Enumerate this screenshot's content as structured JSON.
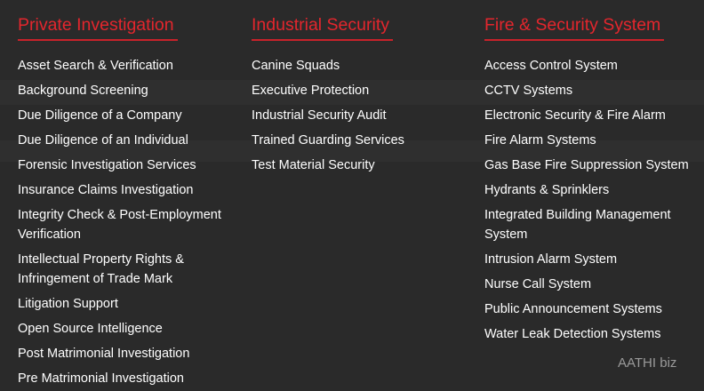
{
  "menu": {
    "columns": [
      {
        "heading": "Private Investigation",
        "items": [
          "Asset Search & Verification",
          "Background Screening",
          "Due Diligence of a Company",
          "Due Diligence of an Individual",
          "Forensic Investigation Services",
          "Insurance Claims Investigation",
          "Integrity Check & Post-Employment Verification",
          "Intellectual Property Rights & Infringement of Trade Mark",
          "Litigation Support",
          "Open Source Intelligence",
          "Post Matrimonial Investigation",
          "Pre Matrimonial Investigation"
        ]
      },
      {
        "heading": "Industrial Security",
        "items": [
          "Canine Squads",
          "Executive Protection",
          "Industrial Security Audit",
          "Trained Guarding Services",
          "Test Material Security"
        ]
      },
      {
        "heading": "Fire & Security System",
        "items": [
          "Access Control System",
          "CCTV Systems",
          "Electronic Security & Fire Alarm",
          "Fire Alarm Systems",
          "Gas Base Fire Suppression System",
          "Hydrants & Sprinklers",
          "Integrated Building Management System",
          "Intrusion Alarm System",
          "Nurse Call System",
          "Public Announcement Systems",
          "Water Leak Detection Systems"
        ]
      }
    ]
  },
  "watermark": "AATHI biz"
}
